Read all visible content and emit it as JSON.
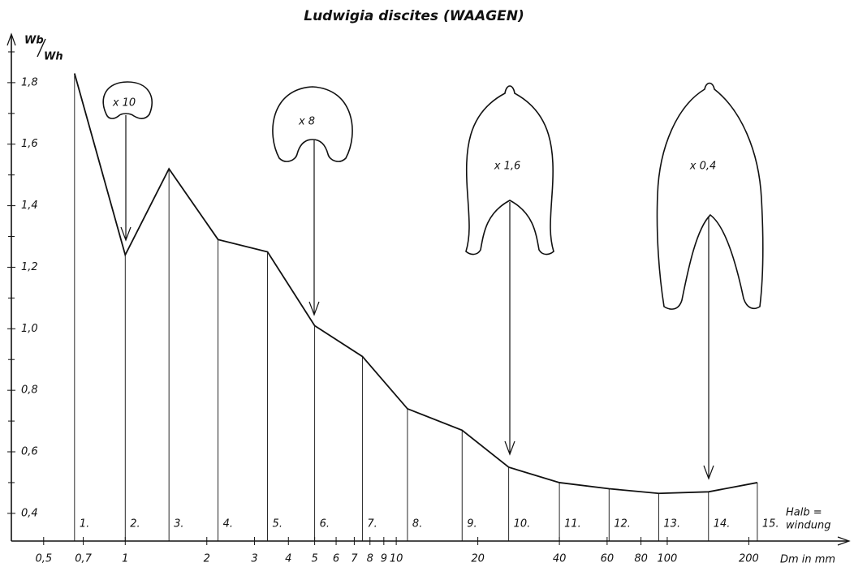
{
  "chart_data": {
    "type": "line",
    "title": "Ludwigia discites (WAAGEN)",
    "ylabel_top": "Wb",
    "ylabel_bottom": "Wh",
    "xlabel": "Dm in mm",
    "halfwhorl_title": [
      "Halb =",
      "windung"
    ],
    "halfwhorl_labels": [
      "1.",
      "2.",
      "3.",
      "4.",
      "5.",
      "6.",
      "7.",
      "8.",
      "9.",
      "10.",
      "11.",
      "12.",
      "13.",
      "14.",
      "15."
    ],
    "x": [
      0.65,
      1,
      1.45,
      2.2,
      3.35,
      5,
      7.5,
      11,
      17.5,
      26,
      40,
      61,
      93,
      142,
      215
    ],
    "values": [
      1.83,
      1.24,
      1.52,
      1.29,
      1.25,
      1.01,
      0.91,
      0.74,
      0.67,
      0.55,
      0.5,
      0.48,
      0.465,
      0.47,
      0.5
    ],
    "color": "#111111",
    "xscale": "log",
    "xlim": [
      0.38,
      450
    ],
    "ylim": [
      0.31,
      1.95
    ],
    "xticks": [
      {
        "value": 0.5,
        "label": "0,5"
      },
      {
        "value": 0.7,
        "label": "0,7"
      },
      1,
      2,
      3,
      4,
      5,
      6,
      7,
      8,
      9,
      10,
      20,
      40,
      60,
      80,
      100,
      200
    ],
    "yticks": [
      {
        "value": 0.4,
        "label": "0,4"
      },
      {
        "value": 0.6,
        "label": "0,6"
      },
      {
        "value": 0.8,
        "label": "0,8"
      },
      {
        "value": 1.0,
        "label": "1,0"
      },
      {
        "value": 1.2,
        "label": "1,2"
      },
      {
        "value": 1.4,
        "label": "1,4"
      },
      {
        "value": 1.6,
        "label": "1,6"
      },
      {
        "value": 1.8,
        "label": "1,8"
      }
    ],
    "yminorticks": [
      0.5,
      0.7,
      0.9,
      1.1,
      1.3,
      1.5,
      1.7,
      1.9
    ],
    "annotations": [
      "x 10",
      "x 8",
      "x 1,6",
      "x 0,4"
    ]
  }
}
